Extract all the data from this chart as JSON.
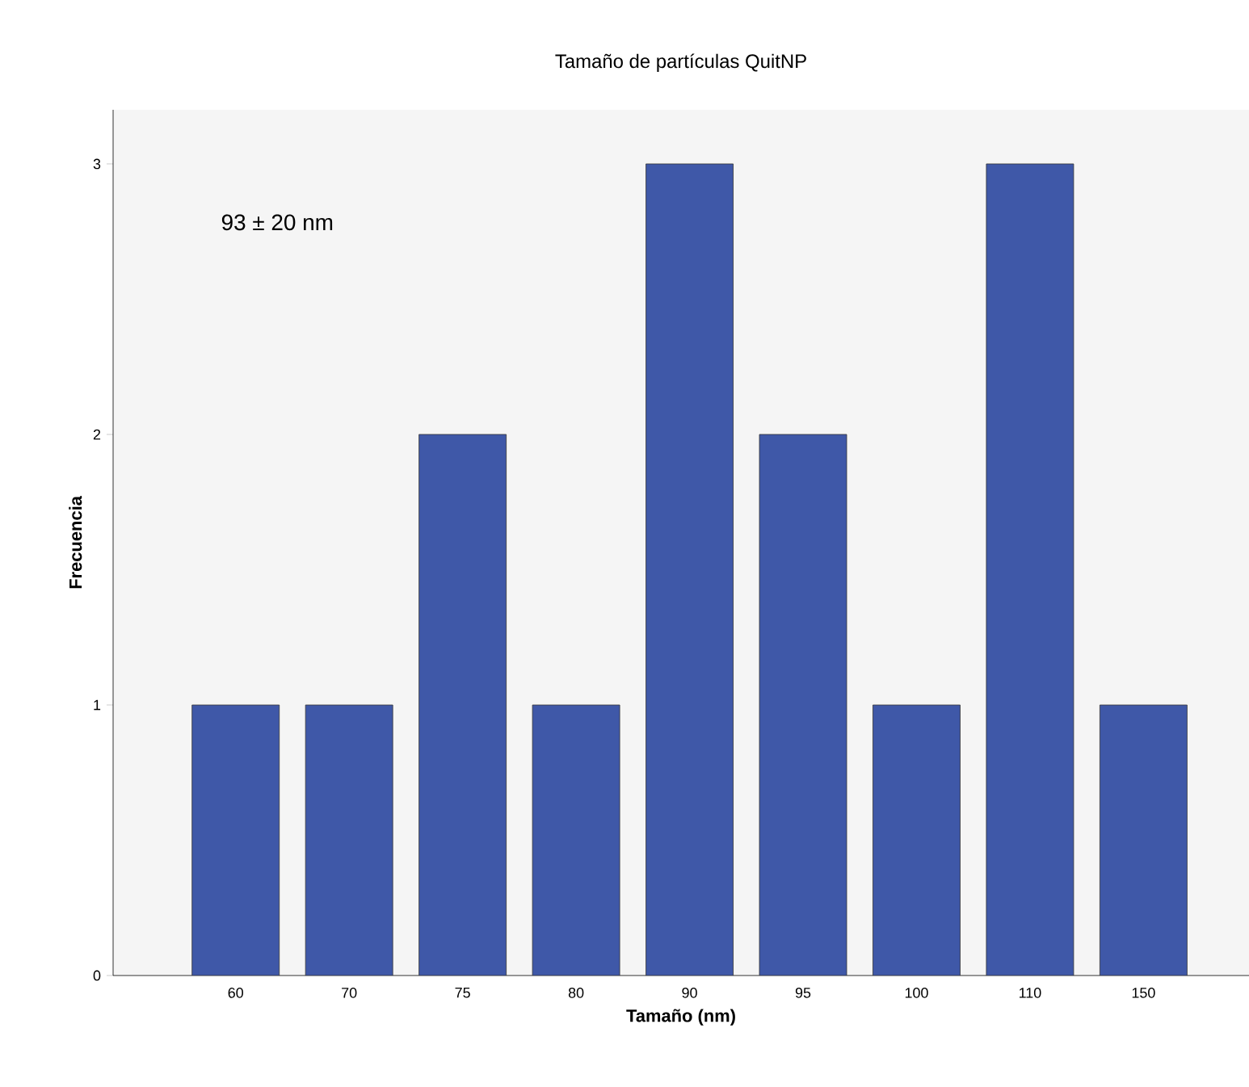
{
  "chart_data": {
    "type": "bar",
    "title": "Tamaño de partículas QuitNP",
    "xlabel": "Tamaño (nm)",
    "ylabel": "Frecuencia",
    "categories": [
      "60",
      "70",
      "75",
      "80",
      "90",
      "95",
      "100",
      "110",
      "150"
    ],
    "values": [
      1,
      1,
      2,
      1,
      3,
      2,
      1,
      3,
      1
    ],
    "color": "#3f58a8",
    "ylim": [
      0,
      3.2
    ],
    "yticks": [
      0,
      1,
      2,
      3
    ],
    "grid": false,
    "annotations": [
      "93 ± 20 nm"
    ]
  }
}
